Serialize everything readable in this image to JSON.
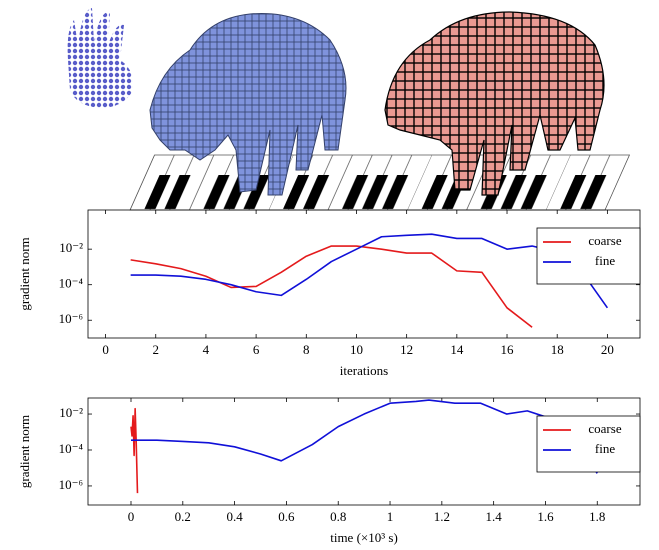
{
  "chart_data": [
    {
      "type": "line",
      "yscale": "log",
      "legend": "upper right",
      "xlabel": "iterations",
      "ylabel": "gradient norm",
      "xlim": [
        -0.7,
        21.3
      ],
      "xticks": [
        0,
        2,
        4,
        6,
        8,
        10,
        12,
        14,
        16,
        18,
        20
      ],
      "ylim": [
        1e-07,
        1.6
      ],
      "yticks": [
        {
          "value": 1e-06,
          "label": "10⁻⁶"
        },
        {
          "value": 0.0001,
          "label": "10⁻⁴"
        },
        {
          "value": 0.01,
          "label": "10⁻²"
        }
      ],
      "series": [
        {
          "name": "coarse",
          "color": "#e41a1c",
          "x": [
            1,
            2,
            3,
            4,
            5,
            6,
            7,
            8,
            9,
            10,
            11,
            12,
            13,
            14,
            15,
            16,
            17
          ],
          "values": [
            0.0025,
            0.0015,
            0.0008,
            0.0003,
            7e-05,
            8e-05,
            0.0005,
            0.004,
            0.015,
            0.015,
            0.01,
            0.006,
            0.006,
            0.0006,
            0.0005,
            5e-06,
            4e-07
          ]
        },
        {
          "name": "fine",
          "color": "#1010d8",
          "x": [
            1,
            2,
            3,
            4,
            5,
            6,
            7,
            8,
            9,
            10,
            11,
            12,
            13,
            14,
            15,
            16,
            17,
            18,
            19,
            20
          ],
          "values": [
            0.00035,
            0.00035,
            0.0003,
            0.0002,
            0.0001,
            4e-05,
            2.5e-05,
            0.0002,
            0.002,
            0.01,
            0.05,
            0.06,
            0.07,
            0.04,
            0.04,
            0.01,
            0.015,
            0.007,
            0.0005,
            5e-06
          ]
        }
      ]
    },
    {
      "type": "line",
      "yscale": "log",
      "legend": "upper right",
      "xlabel": "time (×10³ s)",
      "ylabel": "gradient norm",
      "xlim": [
        -0.166,
        1.965
      ],
      "xticks": [
        0,
        0.2,
        0.4,
        0.6,
        0.8,
        1,
        1.2,
        1.4,
        1.6,
        1.8
      ],
      "ylim": [
        8.7e-08,
        0.078
      ],
      "yticks": [
        {
          "value": 1e-06,
          "label": "10⁻⁶"
        },
        {
          "value": 0.0001,
          "label": "10⁻⁴"
        },
        {
          "value": 0.01,
          "label": "10⁻²"
        }
      ],
      "series": [
        {
          "name": "coarse",
          "color": "#e41a1c",
          "x": [
            0,
            0.004,
            0.008,
            0.012,
            0.016,
            0.02,
            0.025
          ],
          "values": [
            0.002,
            0.0006,
            0.008,
            5e-05,
            0.02,
            0.0003,
            4e-07
          ]
        },
        {
          "name": "fine",
          "color": "#1010d8",
          "x": [
            0,
            0.1,
            0.2,
            0.3,
            0.4,
            0.5,
            0.58,
            0.7,
            0.8,
            0.9,
            1.0,
            1.1,
            1.15,
            1.25,
            1.35,
            1.45,
            1.53,
            1.6,
            1.7,
            1.8
          ],
          "values": [
            0.00035,
            0.00035,
            0.0003,
            0.00025,
            0.00015,
            6e-05,
            2.5e-05,
            0.0002,
            0.002,
            0.01,
            0.04,
            0.05,
            0.06,
            0.04,
            0.04,
            0.01,
            0.015,
            0.007,
            0.0005,
            5e-06
          ]
        }
      ]
    }
  ]
}
